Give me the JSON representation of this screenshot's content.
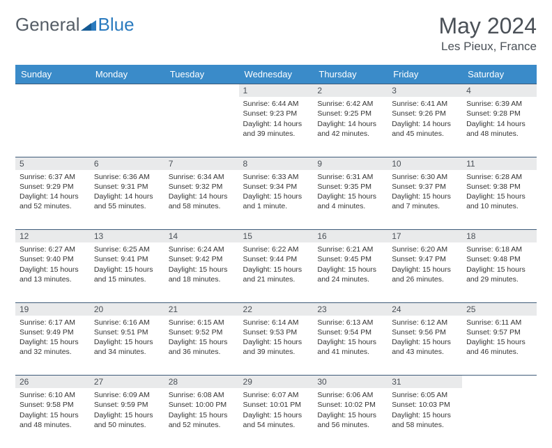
{
  "brand": {
    "word1": "General",
    "word2": "Blue"
  },
  "title": "May 2024",
  "location": "Les Pieux, France",
  "colors": {
    "header_bg": "#3a8bc9",
    "header_text": "#ffffff",
    "daynum_bg": "#e9eaeb",
    "rule": "#3d5a78",
    "body_text": "#333333",
    "title_text": "#4a5057"
  },
  "day_labels": [
    "Sunday",
    "Monday",
    "Tuesday",
    "Wednesday",
    "Thursday",
    "Friday",
    "Saturday"
  ],
  "weeks": [
    [
      null,
      null,
      null,
      {
        "n": "1",
        "sr": "6:44 AM",
        "ss": "9:23 PM",
        "dl": "14 hours and 39 minutes."
      },
      {
        "n": "2",
        "sr": "6:42 AM",
        "ss": "9:25 PM",
        "dl": "14 hours and 42 minutes."
      },
      {
        "n": "3",
        "sr": "6:41 AM",
        "ss": "9:26 PM",
        "dl": "14 hours and 45 minutes."
      },
      {
        "n": "4",
        "sr": "6:39 AM",
        "ss": "9:28 PM",
        "dl": "14 hours and 48 minutes."
      }
    ],
    [
      {
        "n": "5",
        "sr": "6:37 AM",
        "ss": "9:29 PM",
        "dl": "14 hours and 52 minutes."
      },
      {
        "n": "6",
        "sr": "6:36 AM",
        "ss": "9:31 PM",
        "dl": "14 hours and 55 minutes."
      },
      {
        "n": "7",
        "sr": "6:34 AM",
        "ss": "9:32 PM",
        "dl": "14 hours and 58 minutes."
      },
      {
        "n": "8",
        "sr": "6:33 AM",
        "ss": "9:34 PM",
        "dl": "15 hours and 1 minute."
      },
      {
        "n": "9",
        "sr": "6:31 AM",
        "ss": "9:35 PM",
        "dl": "15 hours and 4 minutes."
      },
      {
        "n": "10",
        "sr": "6:30 AM",
        "ss": "9:37 PM",
        "dl": "15 hours and 7 minutes."
      },
      {
        "n": "11",
        "sr": "6:28 AM",
        "ss": "9:38 PM",
        "dl": "15 hours and 10 minutes."
      }
    ],
    [
      {
        "n": "12",
        "sr": "6:27 AM",
        "ss": "9:40 PM",
        "dl": "15 hours and 13 minutes."
      },
      {
        "n": "13",
        "sr": "6:25 AM",
        "ss": "9:41 PM",
        "dl": "15 hours and 15 minutes."
      },
      {
        "n": "14",
        "sr": "6:24 AM",
        "ss": "9:42 PM",
        "dl": "15 hours and 18 minutes."
      },
      {
        "n": "15",
        "sr": "6:22 AM",
        "ss": "9:44 PM",
        "dl": "15 hours and 21 minutes."
      },
      {
        "n": "16",
        "sr": "6:21 AM",
        "ss": "9:45 PM",
        "dl": "15 hours and 24 minutes."
      },
      {
        "n": "17",
        "sr": "6:20 AM",
        "ss": "9:47 PM",
        "dl": "15 hours and 26 minutes."
      },
      {
        "n": "18",
        "sr": "6:18 AM",
        "ss": "9:48 PM",
        "dl": "15 hours and 29 minutes."
      }
    ],
    [
      {
        "n": "19",
        "sr": "6:17 AM",
        "ss": "9:49 PM",
        "dl": "15 hours and 32 minutes."
      },
      {
        "n": "20",
        "sr": "6:16 AM",
        "ss": "9:51 PM",
        "dl": "15 hours and 34 minutes."
      },
      {
        "n": "21",
        "sr": "6:15 AM",
        "ss": "9:52 PM",
        "dl": "15 hours and 36 minutes."
      },
      {
        "n": "22",
        "sr": "6:14 AM",
        "ss": "9:53 PM",
        "dl": "15 hours and 39 minutes."
      },
      {
        "n": "23",
        "sr": "6:13 AM",
        "ss": "9:54 PM",
        "dl": "15 hours and 41 minutes."
      },
      {
        "n": "24",
        "sr": "6:12 AM",
        "ss": "9:56 PM",
        "dl": "15 hours and 43 minutes."
      },
      {
        "n": "25",
        "sr": "6:11 AM",
        "ss": "9:57 PM",
        "dl": "15 hours and 46 minutes."
      }
    ],
    [
      {
        "n": "26",
        "sr": "6:10 AM",
        "ss": "9:58 PM",
        "dl": "15 hours and 48 minutes."
      },
      {
        "n": "27",
        "sr": "6:09 AM",
        "ss": "9:59 PM",
        "dl": "15 hours and 50 minutes."
      },
      {
        "n": "28",
        "sr": "6:08 AM",
        "ss": "10:00 PM",
        "dl": "15 hours and 52 minutes."
      },
      {
        "n": "29",
        "sr": "6:07 AM",
        "ss": "10:01 PM",
        "dl": "15 hours and 54 minutes."
      },
      {
        "n": "30",
        "sr": "6:06 AM",
        "ss": "10:02 PM",
        "dl": "15 hours and 56 minutes."
      },
      {
        "n": "31",
        "sr": "6:05 AM",
        "ss": "10:03 PM",
        "dl": "15 hours and 58 minutes."
      },
      null
    ]
  ],
  "labels": {
    "sunrise": "Sunrise:",
    "sunset": "Sunset:",
    "daylight": "Daylight:"
  }
}
